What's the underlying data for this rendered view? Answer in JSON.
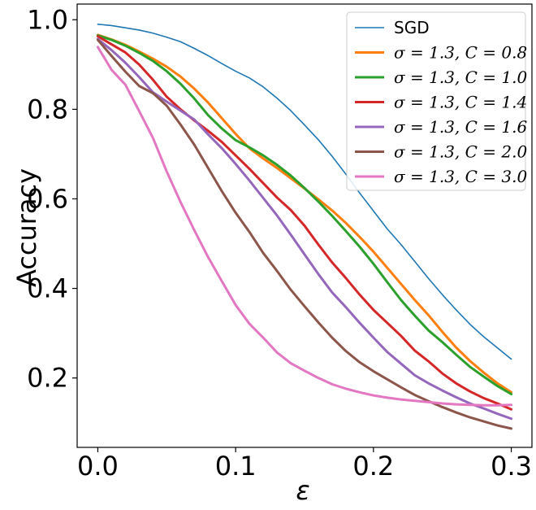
{
  "chart_data": {
    "type": "line",
    "xlabel": "ε",
    "ylabel": "Accuracy",
    "xlim": [
      -0.015,
      0.315
    ],
    "ylim": [
      0.045,
      1.035
    ],
    "xticks": [
      0.0,
      0.1,
      0.2,
      0.3
    ],
    "xtick_labels": [
      "0.0",
      "0.1",
      "0.2",
      "0.3"
    ],
    "yticks": [
      0.2,
      0.4,
      0.6,
      0.8,
      1.0
    ],
    "ytick_labels": [
      "0.2",
      "0.4",
      "0.6",
      "0.8",
      "1.0"
    ],
    "grid": false,
    "legend_position": "top-right",
    "x": [
      0.0,
      0.01,
      0.02,
      0.03,
      0.04,
      0.05,
      0.06,
      0.07,
      0.08,
      0.09,
      0.1,
      0.11,
      0.12,
      0.13,
      0.14,
      0.15,
      0.16,
      0.17,
      0.18,
      0.19,
      0.2,
      0.21,
      0.22,
      0.23,
      0.24,
      0.25,
      0.26,
      0.27,
      0.28,
      0.29,
      0.3
    ],
    "series": [
      {
        "name": "SGD",
        "color": "#1f77b4",
        "width": 1.6,
        "values": [
          0.99,
          0.987,
          0.982,
          0.977,
          0.97,
          0.961,
          0.951,
          0.936,
          0.92,
          0.902,
          0.885,
          0.87,
          0.85,
          0.825,
          0.797,
          0.765,
          0.732,
          0.695,
          0.655,
          0.613,
          0.573,
          0.533,
          0.498,
          0.46,
          0.422,
          0.386,
          0.352,
          0.32,
          0.292,
          0.267,
          0.242
        ]
      },
      {
        "name": "σ = 1.3, C = 0.8",
        "color": "#ff7f0e",
        "width": 3,
        "values": [
          0.966,
          0.956,
          0.944,
          0.929,
          0.913,
          0.895,
          0.873,
          0.846,
          0.815,
          0.78,
          0.745,
          0.713,
          0.69,
          0.669,
          0.646,
          0.623,
          0.599,
          0.574,
          0.546,
          0.515,
          0.482,
          0.446,
          0.41,
          0.374,
          0.34,
          0.303,
          0.268,
          0.238,
          0.212,
          0.188,
          0.168
        ]
      },
      {
        "name": "σ = 1.3, C = 1.0",
        "color": "#2ca02c",
        "width": 3,
        "values": [
          0.965,
          0.955,
          0.942,
          0.926,
          0.908,
          0.885,
          0.857,
          0.824,
          0.787,
          0.757,
          0.731,
          0.715,
          0.697,
          0.676,
          0.652,
          0.624,
          0.594,
          0.562,
          0.528,
          0.493,
          0.455,
          0.414,
          0.374,
          0.339,
          0.306,
          0.28,
          0.252,
          0.225,
          0.203,
          0.182,
          0.164
        ]
      },
      {
        "name": "σ = 1.3, C = 1.4",
        "color": "#d62728",
        "width": 3,
        "values": [
          0.963,
          0.945,
          0.927,
          0.9,
          0.866,
          0.828,
          0.8,
          0.775,
          0.752,
          0.727,
          0.697,
          0.667,
          0.635,
          0.603,
          0.575,
          0.54,
          0.498,
          0.458,
          0.423,
          0.386,
          0.352,
          0.323,
          0.294,
          0.261,
          0.237,
          0.21,
          0.188,
          0.17,
          0.155,
          0.143,
          0.13
        ]
      },
      {
        "name": "σ = 1.3, C = 1.6",
        "color": "#9467bd",
        "width": 3,
        "values": [
          0.957,
          0.932,
          0.904,
          0.872,
          0.838,
          0.817,
          0.797,
          0.777,
          0.744,
          0.713,
          0.678,
          0.641,
          0.602,
          0.563,
          0.52,
          0.476,
          0.432,
          0.391,
          0.358,
          0.323,
          0.29,
          0.258,
          0.232,
          0.206,
          0.188,
          0.172,
          0.157,
          0.143,
          0.132,
          0.12,
          0.109
        ]
      },
      {
        "name": "σ = 1.3, C = 2.0",
        "color": "#8c564b",
        "width": 3,
        "values": [
          0.955,
          0.919,
          0.884,
          0.852,
          0.836,
          0.808,
          0.766,
          0.721,
          0.669,
          0.617,
          0.569,
          0.526,
          0.479,
          0.439,
          0.397,
          0.36,
          0.324,
          0.29,
          0.26,
          0.235,
          0.215,
          0.197,
          0.179,
          0.162,
          0.148,
          0.135,
          0.123,
          0.112,
          0.103,
          0.094,
          0.087
        ]
      },
      {
        "name": "σ = 1.3, C = 3.0",
        "color": "#e377c2",
        "width": 3,
        "values": [
          0.939,
          0.888,
          0.855,
          0.796,
          0.736,
          0.661,
          0.593,
          0.53,
          0.47,
          0.416,
          0.363,
          0.321,
          0.29,
          0.257,
          0.233,
          0.216,
          0.2,
          0.186,
          0.176,
          0.168,
          0.161,
          0.156,
          0.152,
          0.149,
          0.146,
          0.143,
          0.141,
          0.14,
          0.139,
          0.139,
          0.14
        ]
      }
    ]
  }
}
